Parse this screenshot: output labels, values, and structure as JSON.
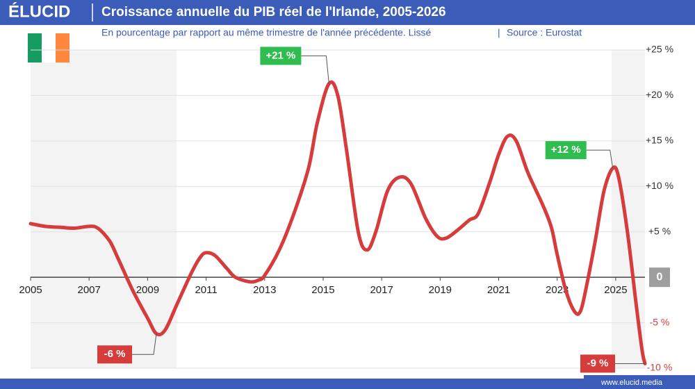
{
  "brand": "ÉLUCID",
  "footer": "www.elucid.media",
  "chart_data": {
    "type": "line",
    "title": "Croissance annuelle du PIB réel de l'Irlande, 2005-2026",
    "subtitle": "En pourcentage par rapport au même trimestre de l'année précédente. Lissé",
    "source": "Source : Eurostat",
    "color": "#d63c3c",
    "x": [
      2005.0,
      2005.5,
      2006.0,
      2006.5,
      2007.0,
      2007.3,
      2007.7,
      2008.0,
      2008.5,
      2009.0,
      2009.3,
      2009.6,
      2010.0,
      2010.5,
      2010.8,
      2011.0,
      2011.3,
      2011.7,
      2012.0,
      2012.5,
      2012.8,
      2013.0,
      2013.5,
      2014.0,
      2014.5,
      2014.8,
      2015.2,
      2015.5,
      2015.8,
      2016.2,
      2016.5,
      2016.8,
      2017.2,
      2017.6,
      2018.0,
      2018.5,
      2018.9,
      2019.2,
      2019.6,
      2020.0,
      2020.3,
      2020.7,
      2021.0,
      2021.3,
      2021.6,
      2022.0,
      2022.5,
      2022.8,
      2023.0,
      2023.3,
      2023.6,
      2023.8,
      2024.0,
      2024.3,
      2024.6,
      2024.9,
      2025.1,
      2025.4,
      2025.7,
      2025.9,
      2026.0
    ],
    "values": [
      5.9,
      5.6,
      5.5,
      5.4,
      5.6,
      5.4,
      4.0,
      2.0,
      -1.5,
      -4.5,
      -6.2,
      -5.8,
      -3.0,
      0.5,
      2.2,
      2.7,
      2.4,
      1.0,
      0.0,
      -0.5,
      -0.3,
      0.2,
      3.0,
      7.0,
      12.0,
      17.0,
      21.3,
      20.0,
      14.0,
      5.0,
      3.0,
      5.0,
      9.5,
      11.0,
      10.3,
      6.5,
      4.5,
      4.3,
      5.2,
      6.3,
      7.0,
      10.5,
      13.5,
      15.5,
      15.0,
      11.5,
      8.0,
      5.5,
      2.5,
      -1.5,
      -3.8,
      -3.7,
      -1.0,
      4.0,
      9.5,
      12.0,
      11.0,
      5.0,
      -3.0,
      -8.0,
      -9.5
    ],
    "xlim": [
      2005,
      2026
    ],
    "xticks": [
      2005,
      2007,
      2009,
      2011,
      2013,
      2015,
      2017,
      2019,
      2021,
      2023,
      2025
    ],
    "ylim": [
      -10,
      25
    ],
    "yticks": [
      {
        "value": 25,
        "label": "+25 %"
      },
      {
        "value": 20,
        "label": "+20 %"
      },
      {
        "value": 15,
        "label": "+15 %"
      },
      {
        "value": 10,
        "label": "+10 %"
      },
      {
        "value": 5,
        "label": "+5 %"
      },
      0,
      {
        "value": -5,
        "label": "-5 %"
      },
      {
        "value": -10,
        "label": "-10 %"
      }
    ],
    "grid": true,
    "annotations": [
      {
        "text": "+21 %",
        "x": 2015.2,
        "y": 21.3,
        "color": "#2ebd4e"
      },
      {
        "text": "-6 %",
        "x": 2009.3,
        "y": -6.2,
        "color": "#d63c3c"
      },
      {
        "text": "+12 %",
        "x": 2024.9,
        "y": 12.0,
        "color": "#2ebd4e"
      },
      {
        "text": "-9 %",
        "x": 2026.0,
        "y": -9.5,
        "color": "#d63c3c"
      }
    ]
  }
}
